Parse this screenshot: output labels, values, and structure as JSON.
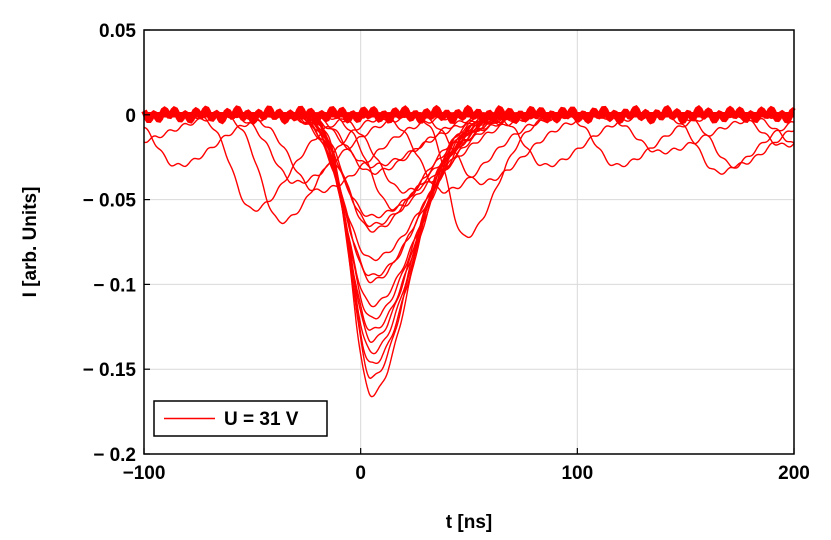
{
  "chart_data": {
    "type": "line",
    "title": "",
    "xlabel": "t [ns]",
    "ylabel": "I [arb. Units]",
    "xlim": [
      -100,
      200
    ],
    "ylim": [
      -0.2,
      0.05
    ],
    "x_ticks": [
      -100,
      0,
      100,
      200
    ],
    "x_tick_labels": [
      "−100",
      "0",
      "100",
      "200"
    ],
    "y_ticks": [
      0.05,
      0,
      -0.05,
      -0.1,
      -0.15,
      -0.2
    ],
    "y_tick_labels": [
      "0.05",
      "0",
      "− 0.05",
      "− 0.1",
      "− 0.15",
      "− 0.2"
    ],
    "grid": true,
    "legend": {
      "position": "bottom-left",
      "entries": [
        "U = 31 V"
      ]
    },
    "series_color": "#ff0000",
    "series": [
      {
        "name": "U = 31 V",
        "pulses": [
          {
            "t0": 5,
            "amp": 0.165,
            "w": 12
          },
          {
            "t0": 5,
            "amp": 0.155,
            "w": 12
          },
          {
            "t0": 5,
            "amp": 0.147,
            "w": 13
          },
          {
            "t0": 5,
            "amp": 0.14,
            "w": 13
          },
          {
            "t0": 5,
            "amp": 0.133,
            "w": 13
          },
          {
            "t0": 5,
            "amp": 0.127,
            "w": 14
          },
          {
            "t0": 5,
            "amp": 0.12,
            "w": 14
          },
          {
            "t0": 5,
            "amp": 0.112,
            "w": 15
          },
          {
            "t0": 5,
            "amp": 0.098,
            "w": 15
          },
          {
            "t0": 5,
            "amp": 0.095,
            "w": 16
          },
          {
            "t0": 5,
            "amp": 0.085,
            "w": 17
          },
          {
            "t0": 5,
            "amp": 0.068,
            "w": 15
          },
          {
            "t0": 5,
            "amp": 0.065,
            "w": 16
          },
          {
            "t0": 5,
            "amp": 0.06,
            "w": 18
          },
          {
            "t0": 5,
            "amp": 0.034,
            "w": 14
          },
          {
            "t0": 5,
            "amp": 0.03,
            "w": 16
          },
          {
            "t0": -85,
            "amp": 0.03,
            "w": 12
          },
          {
            "t0": -50,
            "amp": 0.056,
            "w": 12
          },
          {
            "t0": -37,
            "amp": 0.063,
            "w": 12
          },
          {
            "t0": -20,
            "amp": 0.045,
            "w": 16
          },
          {
            "t0": -30,
            "amp": 0.04,
            "w": 14
          },
          {
            "t0": 15,
            "amp": 0.055,
            "w": 14
          },
          {
            "t0": 20,
            "amp": 0.045,
            "w": 16
          },
          {
            "t0": 38,
            "amp": 0.045,
            "w": 14
          },
          {
            "t0": 48,
            "amp": 0.072,
            "w": 10
          },
          {
            "t0": 55,
            "amp": 0.04,
            "w": 14
          },
          {
            "t0": 85,
            "amp": 0.03,
            "w": 12
          },
          {
            "t0": 118,
            "amp": 0.03,
            "w": 12
          },
          {
            "t0": 138,
            "amp": 0.022,
            "w": 14
          },
          {
            "t0": 165,
            "amp": 0.034,
            "w": 12
          },
          {
            "t0": 172,
            "amp": 0.03,
            "w": 12
          },
          {
            "t0": 195,
            "amp": 0.018,
            "w": 12
          },
          {
            "t0": 205,
            "amp": 0.02,
            "w": 14
          },
          {
            "t0": -105,
            "amp": 0.016,
            "w": 12
          }
        ]
      }
    ]
  }
}
